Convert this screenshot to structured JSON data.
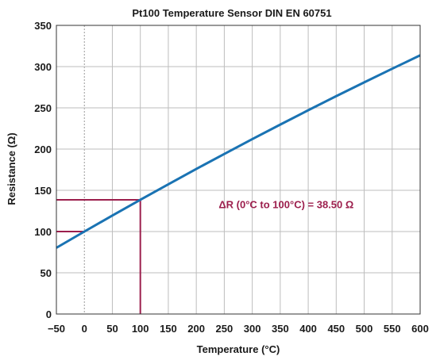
{
  "chart_data": {
    "type": "line",
    "title": "Pt100 Temperature Sensor DIN EN 60751",
    "xlabel": "Temperature (°C)",
    "ylabel": "Resistance (Ω)",
    "xlim": [
      -50,
      600
    ],
    "ylim": [
      0,
      350
    ],
    "x_ticks": [
      -50,
      0,
      50,
      100,
      150,
      200,
      250,
      300,
      350,
      400,
      450,
      500,
      550,
      600
    ],
    "x_tick_labels": [
      "−50",
      "0",
      "50",
      "100",
      "150",
      "200",
      "250",
      "300",
      "350",
      "400",
      "450",
      "500",
      "550",
      "600"
    ],
    "y_ticks": [
      0,
      50,
      100,
      150,
      200,
      250,
      300,
      350
    ],
    "y_tick_labels": [
      "0",
      "50",
      "100",
      "150",
      "200",
      "250",
      "300",
      "350"
    ],
    "grid": true,
    "series": [
      {
        "color": "#1a73b3",
        "x": [
          -50,
          0,
          50,
          100,
          150,
          200,
          250,
          300,
          350,
          400,
          450,
          500,
          550,
          600
        ],
        "y": [
          80.3,
          100.0,
          119.4,
          138.5,
          157.3,
          175.9,
          194.1,
          212.1,
          229.7,
          247.1,
          264.2,
          280.9,
          297.4,
          313.7
        ]
      }
    ],
    "reference_markers": {
      "color": "#9c1f4d",
      "points": [
        {
          "x": 0,
          "y": 100.0
        },
        {
          "x": 100,
          "y": 138.5
        }
      ]
    },
    "annotation": {
      "text": "ΔR (0°C to 100°C) = 38.50 Ω",
      "x": 240,
      "y": 133,
      "color": "#9c1f4d"
    }
  }
}
